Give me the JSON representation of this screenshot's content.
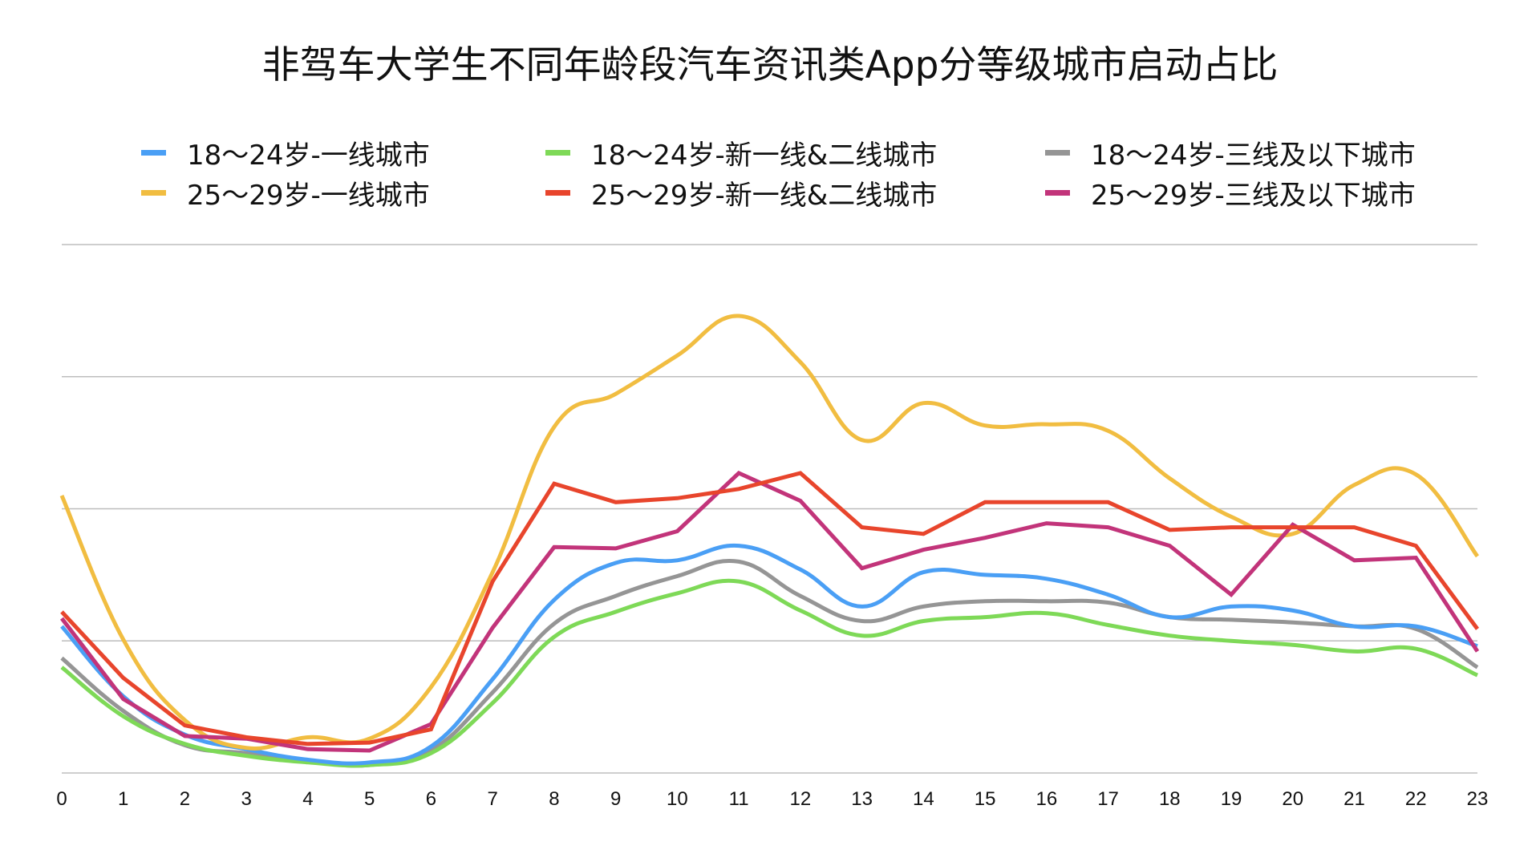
{
  "chart_data": {
    "type": "line",
    "title": "非驾车大学生不同年龄段汽车资讯类App分等级城市启动占比",
    "xlabel": "",
    "ylabel": "",
    "x": [
      0,
      1,
      2,
      3,
      4,
      5,
      6,
      7,
      8,
      9,
      10,
      11,
      12,
      13,
      14,
      15,
      16,
      17,
      18,
      19,
      20,
      21,
      22,
      23
    ],
    "x_tick_labels": [
      "0",
      "1",
      "2",
      "3",
      "4",
      "5",
      "6",
      "7",
      "8",
      "9",
      "10",
      "11",
      "12",
      "13",
      "14",
      "15",
      "16",
      "17",
      "18",
      "19",
      "20",
      "21",
      "22",
      "23"
    ],
    "ylim": [
      0,
      4
    ],
    "y_unit_note": "relative (gridline units; y-axis unlabeled)",
    "grid": true,
    "legend_position": "top",
    "series": [
      {
        "name": "18～24岁-一线城市",
        "color": "#4A9FF5",
        "smooth": true,
        "values": [
          1.11,
          0.58,
          0.29,
          0.18,
          0.1,
          0.08,
          0.2,
          0.71,
          1.31,
          1.59,
          1.61,
          1.72,
          1.54,
          1.26,
          1.52,
          1.5,
          1.47,
          1.35,
          1.18,
          1.26,
          1.23,
          1.11,
          1.11,
          0.96
        ]
      },
      {
        "name": "18～24岁-新一线&二线城市",
        "color": "#7ED957",
        "smooth": true,
        "values": [
          0.8,
          0.43,
          0.22,
          0.13,
          0.08,
          0.06,
          0.15,
          0.53,
          1.03,
          1.22,
          1.36,
          1.45,
          1.23,
          1.04,
          1.15,
          1.18,
          1.21,
          1.12,
          1.04,
          1.0,
          0.97,
          0.92,
          0.94,
          0.74
        ]
      },
      {
        "name": "18～24岁-三线及以下城市",
        "color": "#959595",
        "smooth": true,
        "values": [
          0.87,
          0.47,
          0.21,
          0.15,
          0.09,
          0.06,
          0.17,
          0.61,
          1.13,
          1.34,
          1.49,
          1.6,
          1.34,
          1.15,
          1.26,
          1.3,
          1.3,
          1.29,
          1.18,
          1.16,
          1.14,
          1.11,
          1.09,
          0.8
        ]
      },
      {
        "name": "25～29岁-一线城市",
        "color": "#F1BD41",
        "smooth": true,
        "values": [
          2.1,
          1.01,
          0.4,
          0.19,
          0.27,
          0.26,
          0.65,
          1.52,
          2.62,
          2.87,
          3.16,
          3.46,
          3.11,
          2.52,
          2.8,
          2.63,
          2.64,
          2.59,
          2.23,
          1.94,
          1.81,
          2.18,
          2.26,
          1.64
        ]
      },
      {
        "name": "25～29岁-新一线&二线城市",
        "color": "#E8452C",
        "smooth": false,
        "values": [
          1.22,
          0.72,
          0.36,
          0.27,
          0.22,
          0.23,
          0.33,
          1.45,
          2.19,
          2.05,
          2.08,
          2.15,
          2.27,
          1.86,
          1.81,
          2.05,
          2.05,
          2.05,
          1.84,
          1.86,
          1.86,
          1.86,
          1.72,
          1.09
        ]
      },
      {
        "name": "25～29岁-三线及以下城市",
        "color": "#C2347A",
        "smooth": false,
        "values": [
          1.17,
          0.56,
          0.28,
          0.26,
          0.18,
          0.17,
          0.37,
          1.1,
          1.71,
          1.7,
          1.83,
          2.27,
          2.06,
          1.55,
          1.69,
          1.78,
          1.89,
          1.86,
          1.72,
          1.35,
          1.88,
          1.61,
          1.63,
          0.92
        ]
      }
    ]
  }
}
